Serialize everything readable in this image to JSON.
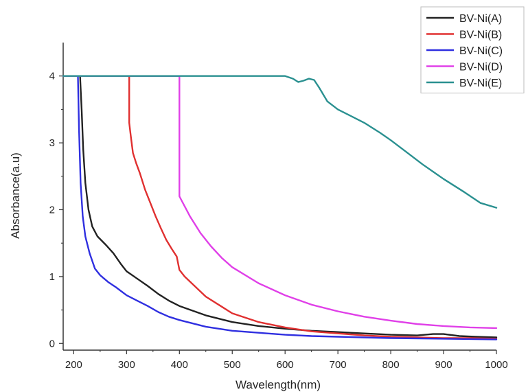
{
  "chart_data": {
    "type": "line",
    "title": "",
    "xlabel": "Wavelength(nm)",
    "ylabel": "Absorbance(a.u)",
    "xlim": [
      180,
      1000
    ],
    "ylim": [
      -0.1,
      4.5
    ],
    "xticks": [
      200,
      300,
      400,
      500,
      600,
      700,
      800,
      900,
      1000
    ],
    "yticks": [
      0,
      1,
      2,
      3,
      4
    ],
    "grid": false,
    "legend_position": "top-right",
    "series": [
      {
        "name": "BV-Ni(A)",
        "color": "#222222",
        "points": [
          [
            212,
            4.0
          ],
          [
            215,
            3.5
          ],
          [
            218,
            2.9
          ],
          [
            222,
            2.4
          ],
          [
            228,
            2.0
          ],
          [
            235,
            1.75
          ],
          [
            245,
            1.6
          ],
          [
            260,
            1.48
          ],
          [
            275,
            1.35
          ],
          [
            290,
            1.18
          ],
          [
            300,
            1.08
          ],
          [
            320,
            0.97
          ],
          [
            340,
            0.86
          ],
          [
            360,
            0.74
          ],
          [
            380,
            0.64
          ],
          [
            400,
            0.56
          ],
          [
            450,
            0.42
          ],
          [
            500,
            0.32
          ],
          [
            550,
            0.26
          ],
          [
            600,
            0.22
          ],
          [
            650,
            0.19
          ],
          [
            700,
            0.17
          ],
          [
            750,
            0.15
          ],
          [
            800,
            0.13
          ],
          [
            850,
            0.12
          ],
          [
            880,
            0.14
          ],
          [
            900,
            0.14
          ],
          [
            930,
            0.11
          ],
          [
            960,
            0.1
          ],
          [
            1000,
            0.09
          ]
        ]
      },
      {
        "name": "BV-Ni(B)",
        "color": "#e03030",
        "points": [
          [
            305,
            4.0
          ],
          [
            305,
            3.3
          ],
          [
            308,
            3.1
          ],
          [
            312,
            2.85
          ],
          [
            318,
            2.7
          ],
          [
            325,
            2.55
          ],
          [
            335,
            2.3
          ],
          [
            345,
            2.1
          ],
          [
            355,
            1.9
          ],
          [
            365,
            1.72
          ],
          [
            375,
            1.55
          ],
          [
            385,
            1.42
          ],
          [
            395,
            1.3
          ],
          [
            400,
            1.1
          ],
          [
            410,
            1.0
          ],
          [
            430,
            0.85
          ],
          [
            450,
            0.7
          ],
          [
            480,
            0.55
          ],
          [
            500,
            0.45
          ],
          [
            550,
            0.32
          ],
          [
            600,
            0.24
          ],
          [
            650,
            0.18
          ],
          [
            700,
            0.15
          ],
          [
            750,
            0.12
          ],
          [
            800,
            0.1
          ],
          [
            850,
            0.09
          ],
          [
            900,
            0.08
          ],
          [
            950,
            0.08
          ],
          [
            1000,
            0.07
          ]
        ]
      },
      {
        "name": "BV-Ni(C)",
        "color": "#2f2fe0",
        "points": [
          [
            208,
            4.0
          ],
          [
            210,
            3.2
          ],
          [
            213,
            2.4
          ],
          [
            217,
            1.9
          ],
          [
            222,
            1.6
          ],
          [
            230,
            1.35
          ],
          [
            240,
            1.12
          ],
          [
            250,
            1.02
          ],
          [
            265,
            0.92
          ],
          [
            280,
            0.84
          ],
          [
            300,
            0.72
          ],
          [
            320,
            0.64
          ],
          [
            340,
            0.56
          ],
          [
            360,
            0.47
          ],
          [
            380,
            0.4
          ],
          [
            400,
            0.35
          ],
          [
            450,
            0.25
          ],
          [
            500,
            0.19
          ],
          [
            550,
            0.16
          ],
          [
            600,
            0.13
          ],
          [
            650,
            0.11
          ],
          [
            700,
            0.1
          ],
          [
            750,
            0.09
          ],
          [
            800,
            0.08
          ],
          [
            900,
            0.07
          ],
          [
            1000,
            0.06
          ]
        ]
      },
      {
        "name": "BV-Ni(D)",
        "color": "#e040e8",
        "points": [
          [
            180,
            4.0
          ],
          [
            400,
            4.0
          ],
          [
            400,
            2.2
          ],
          [
            410,
            2.05
          ],
          [
            420,
            1.9
          ],
          [
            440,
            1.65
          ],
          [
            460,
            1.45
          ],
          [
            480,
            1.28
          ],
          [
            500,
            1.14
          ],
          [
            550,
            0.9
          ],
          [
            600,
            0.72
          ],
          [
            650,
            0.58
          ],
          [
            700,
            0.48
          ],
          [
            750,
            0.4
          ],
          [
            800,
            0.34
          ],
          [
            850,
            0.29
          ],
          [
            900,
            0.26
          ],
          [
            950,
            0.24
          ],
          [
            1000,
            0.23
          ]
        ]
      },
      {
        "name": "BV-Ni(E)",
        "color": "#2a9090",
        "points": [
          [
            180,
            4.0
          ],
          [
            600,
            4.0
          ],
          [
            615,
            3.96
          ],
          [
            625,
            3.91
          ],
          [
            635,
            3.93
          ],
          [
            645,
            3.96
          ],
          [
            655,
            3.94
          ],
          [
            665,
            3.82
          ],
          [
            680,
            3.62
          ],
          [
            700,
            3.5
          ],
          [
            720,
            3.42
          ],
          [
            750,
            3.3
          ],
          [
            780,
            3.15
          ],
          [
            800,
            3.04
          ],
          [
            830,
            2.86
          ],
          [
            860,
            2.68
          ],
          [
            900,
            2.46
          ],
          [
            940,
            2.26
          ],
          [
            970,
            2.1
          ],
          [
            1000,
            2.03
          ]
        ]
      }
    ]
  }
}
